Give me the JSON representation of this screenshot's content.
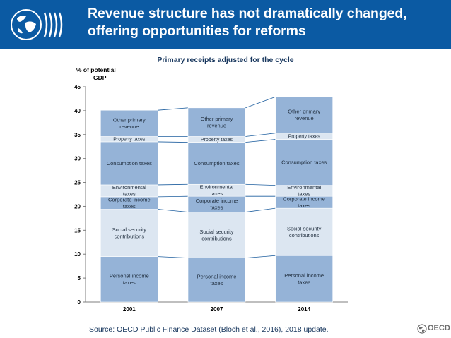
{
  "header": {
    "title_line1": "Revenue structure has not dramatically changed,",
    "title_line2": "offering opportunities for reforms",
    "logo_icon": "oecd-globe-logo-icon",
    "background": "#0b5aa3"
  },
  "chart_data": {
    "type": "stacked-bar",
    "title": "Primary receipts adjusted for the cycle",
    "ylabel_line1": "% of potential",
    "ylabel_line2": "GDP",
    "xlabel": "",
    "ylim": [
      0,
      45
    ],
    "yticks": [
      0,
      5,
      10,
      15,
      20,
      25,
      30,
      35,
      40,
      45
    ],
    "grid": false,
    "legend": "none",
    "categories": [
      "2001",
      "2007",
      "2014"
    ],
    "series": [
      {
        "name": "Personal income taxes",
        "label_lines": [
          "Personal income",
          "taxes"
        ],
        "color": "#95b3d7",
        "values": [
          9.5,
          9.2,
          9.7
        ]
      },
      {
        "name": "Social security contributions",
        "label_lines": [
          "Social security",
          "contributions"
        ],
        "color": "#dce6f1",
        "values": [
          9.9,
          9.6,
          9.9
        ]
      },
      {
        "name": "Corporate income taxes",
        "label_lines": [
          "Corporate income",
          "taxes"
        ],
        "color": "#95b3d7",
        "values": [
          2.6,
          3.3,
          2.5
        ]
      },
      {
        "name": "Environmental taxes",
        "label_lines": [
          "Environmental",
          "taxes"
        ],
        "color": "#dce6f1",
        "values": [
          2.5,
          2.5,
          2.3
        ]
      },
      {
        "name": "Consumption taxes",
        "label_lines": [
          "Consumption taxes"
        ],
        "color": "#95b3d7",
        "values": [
          9.0,
          8.8,
          9.6
        ]
      },
      {
        "name": "Property taxes",
        "label_lines": [
          "Property taxes"
        ],
        "color": "#dce6f1",
        "values": [
          1.1,
          1.2,
          1.3
        ]
      },
      {
        "name": "Other primary revenue",
        "label_lines": [
          "Other primary",
          "revenue"
        ],
        "color": "#95b3d7",
        "values": [
          5.5,
          6.0,
          7.6
        ]
      }
    ]
  },
  "footer": {
    "source": "Source: OECD Public Finance Dataset (Bloch et al., 2016), 2018 update.",
    "brand": "OECD",
    "brand_icon": "oecd-globe-icon"
  }
}
